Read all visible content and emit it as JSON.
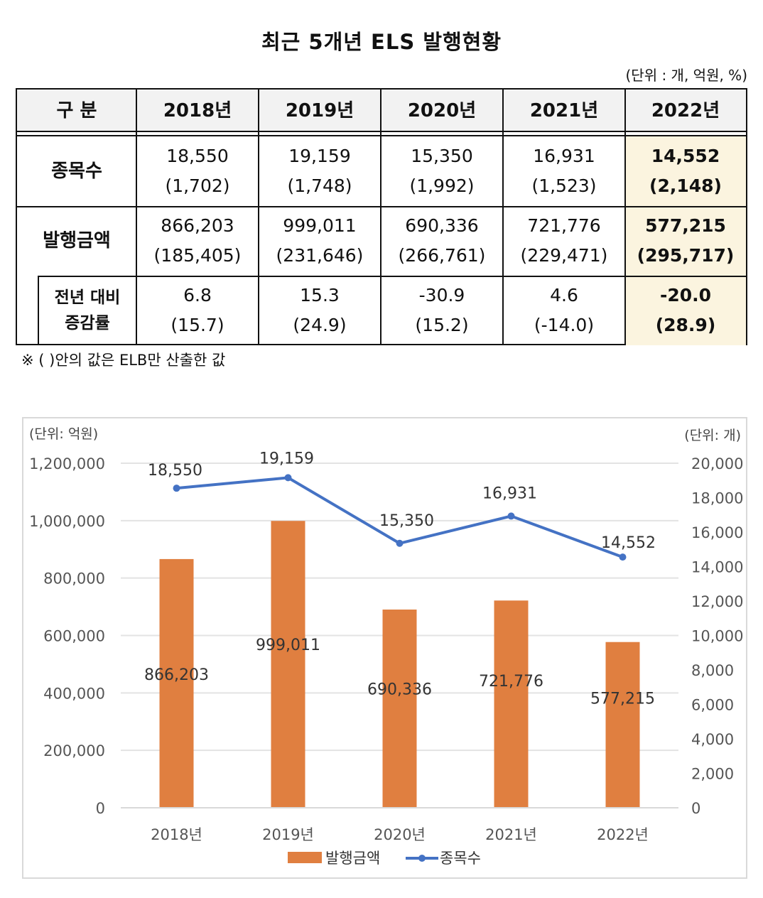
{
  "title": "최근 5개년 ELS 발행현황",
  "unit_note": "(단위 : 개, 억원, %)",
  "table": {
    "header": [
      "구 분",
      "2018년",
      "2019년",
      "2020년",
      "2021년",
      "2022년"
    ],
    "rows": [
      {
        "label": "종목수",
        "values": [
          [
            "18,550",
            "(1,702)"
          ],
          [
            "19,159",
            "(1,748)"
          ],
          [
            "15,350",
            "(1,992)"
          ],
          [
            "16,931",
            "(1,523)"
          ],
          [
            "14,552",
            "(2,148)"
          ]
        ]
      },
      {
        "label": "발행금액",
        "values": [
          [
            "866,203",
            "(185,405)"
          ],
          [
            "999,011",
            "(231,646)"
          ],
          [
            "690,336",
            "(266,761)"
          ],
          [
            "721,776",
            "(229,471)"
          ],
          [
            "577,215",
            "(295,717)"
          ]
        ]
      },
      {
        "label_line1": "전년 대비",
        "label_line2": "증감률",
        "values": [
          [
            "6.8",
            "(15.7)"
          ],
          [
            "15.3",
            "(24.9)"
          ],
          [
            "-30.9",
            "(15.2)"
          ],
          [
            "4.6",
            "(-14.0)"
          ],
          [
            "-20.0",
            "(28.9)"
          ]
        ]
      }
    ],
    "highlight_color": "#fbf4df"
  },
  "footnote": "※ (    )안의 값은 ELB만 산출한 값",
  "chart_data": {
    "type": "bar+line",
    "categories": [
      "2018년",
      "2019년",
      "2020년",
      "2021년",
      "2022년"
    ],
    "left_axis_label": "(단위: 억원)",
    "right_axis_label": "(단위: 개)",
    "left_ylim": [
      0,
      1200000
    ],
    "left_ticks": [
      "0",
      "200,000",
      "400,000",
      "600,000",
      "800,000",
      "1,000,000",
      "1,200,000"
    ],
    "right_ylim": [
      0,
      20000
    ],
    "right_ticks": [
      "0",
      "2,000",
      "4,000",
      "6,000",
      "8,000",
      "10,000",
      "12,000",
      "14,000",
      "16,000",
      "18,000",
      "20,000"
    ],
    "grid": true,
    "legend_position": "bottom",
    "series": [
      {
        "name": "발행금액",
        "type": "bar",
        "axis": "left",
        "color": "#e07f40",
        "values": [
          866203,
          999011,
          690336,
          721776,
          577215
        ],
        "labels": [
          "866,203",
          "999,011",
          "690,336",
          "721,776",
          "577,215"
        ]
      },
      {
        "name": "종목수",
        "type": "line",
        "axis": "right",
        "color": "#4472c4",
        "values": [
          18550,
          19159,
          15350,
          16931,
          14552
        ],
        "labels": [
          "18,550",
          "19,159",
          "15,350",
          "16,931",
          "14,552"
        ]
      }
    ]
  }
}
